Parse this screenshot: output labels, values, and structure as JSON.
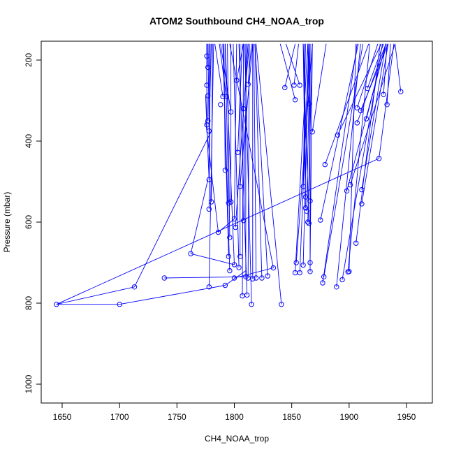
{
  "chart_data": {
    "type": "scatter",
    "title": "ATOM2 Southbound CH4_NOAA_trop",
    "xlabel": "CH4_NOAA_trop",
    "ylabel": "Pressure (mbar)",
    "xlim": [
      1635,
      1975
    ],
    "ylim": [
      1040,
      160
    ],
    "y_reversed": true,
    "x_ticks": [
      1650,
      1700,
      1750,
      1800,
      1850,
      1900,
      1950
    ],
    "y_ticks": [
      200,
      400,
      600,
      800,
      1000
    ],
    "grid": false,
    "legend": "none",
    "series_color": "#0000ff",
    "marker": "open-circle",
    "points": [
      [
        1776,
        190
      ],
      [
        1777,
        218
      ],
      [
        1776,
        262
      ],
      [
        1777,
        288
      ],
      [
        1777,
        350
      ],
      [
        1776,
        360
      ],
      [
        1778,
        375
      ],
      [
        1778,
        495
      ],
      [
        1778,
        568
      ],
      [
        1780,
        550
      ],
      [
        1786,
        625
      ],
      [
        1778,
        760
      ],
      [
        1790,
        290
      ],
      [
        1788,
        310
      ],
      [
        1793,
        290
      ],
      [
        1797,
        328
      ],
      [
        1802,
        250
      ],
      [
        1812,
        260
      ],
      [
        1808,
        320
      ],
      [
        1803,
        428
      ],
      [
        1792,
        472
      ],
      [
        1805,
        512
      ],
      [
        1795,
        553
      ],
      [
        1797,
        550
      ],
      [
        1800,
        592
      ],
      [
        1801,
        613
      ],
      [
        1808,
        596
      ],
      [
        1796,
        638
      ],
      [
        1795,
        685
      ],
      [
        1805,
        685
      ],
      [
        1800,
        705
      ],
      [
        1804,
        712
      ],
      [
        1796,
        720
      ],
      [
        1800,
        738
      ],
      [
        1810,
        735
      ],
      [
        1812,
        738
      ],
      [
        1816,
        740
      ],
      [
        1819,
        738
      ],
      [
        1824,
        738
      ],
      [
        1829,
        733
      ],
      [
        1834,
        713
      ],
      [
        1792,
        756
      ],
      [
        1807,
        782
      ],
      [
        1811,
        780
      ],
      [
        1815,
        803
      ],
      [
        1841,
        803
      ],
      [
        1762,
        678
      ],
      [
        1739,
        738
      ],
      [
        1713,
        760
      ],
      [
        1645,
        803
      ],
      [
        1700,
        803
      ],
      [
        1844,
        268
      ],
      [
        1852,
        262
      ],
      [
        1857,
        262
      ],
      [
        1853,
        298
      ],
      [
        1865,
        308
      ],
      [
        1868,
        377
      ],
      [
        1860,
        512
      ],
      [
        1862,
        538
      ],
      [
        1862,
        565
      ],
      [
        1863,
        573
      ],
      [
        1866,
        548
      ],
      [
        1864,
        600
      ],
      [
        1865,
        603
      ],
      [
        1860,
        706
      ],
      [
        1866,
        700
      ],
      [
        1854,
        700
      ],
      [
        1853,
        725
      ],
      [
        1857,
        725
      ],
      [
        1866,
        722
      ],
      [
        1875,
        595
      ],
      [
        1879,
        458
      ],
      [
        1877,
        750
      ],
      [
        1878,
        735
      ],
      [
        1889,
        760
      ],
      [
        1894,
        742
      ],
      [
        1900,
        722
      ],
      [
        1899,
        723
      ],
      [
        1906,
        652
      ],
      [
        1890,
        385
      ],
      [
        1898,
        523
      ],
      [
        1901,
        508
      ],
      [
        1907,
        355
      ],
      [
        1907,
        318
      ],
      [
        1910,
        325
      ],
      [
        1911,
        520
      ],
      [
        1911,
        555
      ],
      [
        1915,
        345
      ],
      [
        1916,
        270
      ],
      [
        1926,
        443
      ],
      [
        1930,
        285
      ],
      [
        1933,
        310
      ],
      [
        1945,
        278
      ]
    ],
    "segments": [
      [
        1776,
        190,
        1776,
        160
      ],
      [
        1777,
        218,
        1777,
        160
      ],
      [
        1776,
        262,
        1776,
        160
      ],
      [
        1777,
        350,
        1778,
        160
      ],
      [
        1776,
        360,
        1776,
        160
      ],
      [
        1778,
        375,
        1780,
        160
      ],
      [
        1778,
        495,
        1778,
        160
      ],
      [
        1778,
        568,
        1779,
        160
      ],
      [
        1780,
        550,
        1781,
        160
      ],
      [
        1778,
        760,
        1782,
        160
      ],
      [
        1786,
        625,
        1775,
        350
      ],
      [
        1778,
        495,
        1775,
        290
      ],
      [
        1713,
        760,
        1780,
        375
      ],
      [
        1762,
        678,
        1777,
        495
      ],
      [
        1790,
        290,
        1783,
        160
      ],
      [
        1793,
        290,
        1787,
        160
      ],
      [
        1797,
        328,
        1788,
        160
      ],
      [
        1792,
        472,
        1791,
        160
      ],
      [
        1795,
        553,
        1792,
        160
      ],
      [
        1795,
        685,
        1790,
        160
      ],
      [
        1800,
        705,
        1792,
        160
      ],
      [
        1804,
        712,
        1799,
        160
      ],
      [
        1805,
        685,
        1805,
        160
      ],
      [
        1808,
        596,
        1811,
        160
      ],
      [
        1808,
        320,
        1813,
        160
      ],
      [
        1812,
        260,
        1815,
        160
      ],
      [
        1802,
        250,
        1808,
        160
      ],
      [
        1803,
        428,
        1807,
        160
      ],
      [
        1805,
        512,
        1816,
        160
      ],
      [
        1796,
        638,
        1794,
        160
      ],
      [
        1797,
        550,
        1797,
        160
      ],
      [
        1800,
        592,
        1802,
        160
      ],
      [
        1810,
        735,
        1810,
        160
      ],
      [
        1812,
        738,
        1813,
        160
      ],
      [
        1816,
        740,
        1816,
        160
      ],
      [
        1819,
        738,
        1817,
        160
      ],
      [
        1824,
        738,
        1818,
        160
      ],
      [
        1829,
        733,
        1818,
        160
      ],
      [
        1834,
        713,
        1796,
        160
      ],
      [
        1801,
        613,
        1812,
        160
      ],
      [
        1796,
        720,
        1790,
        160
      ],
      [
        1807,
        782,
        1808,
        160
      ],
      [
        1811,
        780,
        1804,
        160
      ],
      [
        1786,
        625,
        1800,
        592
      ],
      [
        1792,
        756,
        1810,
        720
      ],
      [
        1645,
        803,
        1926,
        443
      ],
      [
        1645,
        803,
        1713,
        760
      ],
      [
        1645,
        803,
        1700,
        803
      ],
      [
        1700,
        803,
        1792,
        756
      ],
      [
        1739,
        738,
        1810,
        735
      ],
      [
        1762,
        678,
        1800,
        705
      ],
      [
        1815,
        803,
        1809,
        160
      ],
      [
        1841,
        803,
        1819,
        160
      ],
      [
        1800,
        738,
        1834,
        713
      ],
      [
        1844,
        268,
        1853,
        160
      ],
      [
        1852,
        262,
        1856,
        160
      ],
      [
        1853,
        298,
        1840,
        160
      ],
      [
        1857,
        262,
        1845,
        160
      ],
      [
        1865,
        308,
        1864,
        160
      ],
      [
        1860,
        512,
        1862,
        160
      ],
      [
        1862,
        538,
        1861,
        160
      ],
      [
        1862,
        565,
        1860,
        160
      ],
      [
        1863,
        573,
        1866,
        160
      ],
      [
        1864,
        600,
        1868,
        160
      ],
      [
        1865,
        603,
        1860,
        160
      ],
      [
        1866,
        548,
        1865,
        160
      ],
      [
        1860,
        706,
        1865,
        160
      ],
      [
        1866,
        700,
        1868,
        160
      ],
      [
        1866,
        722,
        1866,
        160
      ],
      [
        1854,
        700,
        1868,
        160
      ],
      [
        1853,
        725,
        1864,
        160
      ],
      [
        1857,
        725,
        1865,
        160
      ],
      [
        1868,
        377,
        1880,
        160
      ],
      [
        1875,
        595,
        1908,
        160
      ],
      [
        1879,
        458,
        1917,
        160
      ],
      [
        1877,
        750,
        1907,
        160
      ],
      [
        1878,
        735,
        1912,
        160
      ],
      [
        1889,
        760,
        1910,
        160
      ],
      [
        1894,
        742,
        1929,
        160
      ],
      [
        1900,
        722,
        1906,
        160
      ],
      [
        1899,
        723,
        1918,
        160
      ],
      [
        1906,
        652,
        1927,
        160
      ],
      [
        1890,
        385,
        1928,
        160
      ],
      [
        1898,
        523,
        1932,
        160
      ],
      [
        1901,
        508,
        1940,
        160
      ],
      [
        1907,
        355,
        1932,
        160
      ],
      [
        1910,
        325,
        1934,
        160
      ],
      [
        1911,
        520,
        1932,
        160
      ],
      [
        1911,
        555,
        1934,
        160
      ],
      [
        1915,
        345,
        1932,
        160
      ],
      [
        1916,
        270,
        1930,
        160
      ],
      [
        1930,
        285,
        1933,
        160
      ],
      [
        1933,
        310,
        1936,
        160
      ],
      [
        1945,
        278,
        1940,
        160
      ],
      [
        1907,
        318,
        1925,
        160
      ],
      [
        1926,
        443,
        1939,
        160
      ]
    ]
  }
}
